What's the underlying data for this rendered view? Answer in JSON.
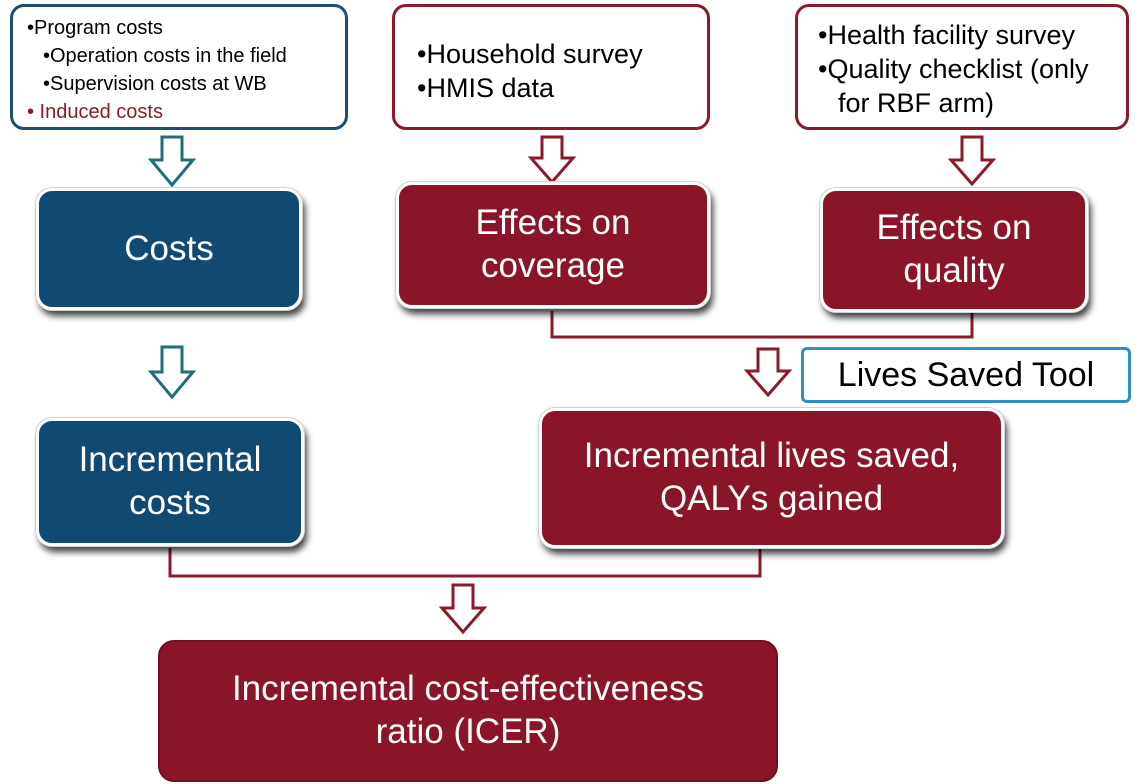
{
  "sources": {
    "costs": {
      "items": [
        "•Program costs",
        "•Operation costs in the field",
        "•Supervision costs at WB",
        "• Induced costs"
      ]
    },
    "coverage": {
      "items": [
        "•Household survey",
        "•HMIS data"
      ]
    },
    "quality": {
      "items": [
        "•Health facility survey",
        "•Quality checklist (only",
        "for RBF arm)"
      ]
    }
  },
  "boxes": {
    "costs": [
      "Costs"
    ],
    "coverage": [
      "Effects on",
      "coverage"
    ],
    "quality": [
      "Effects on",
      "quality"
    ],
    "incremental_costs": [
      "Incremental",
      "costs"
    ],
    "lives": [
      "Incremental lives saved,",
      "QALYs gained"
    ],
    "icer": [
      "Incremental cost-effectiveness",
      "ratio (ICER)"
    ]
  },
  "tool_label": "Lives Saved Tool",
  "colors": {
    "blue_box": "#104a72",
    "red_box": "#8b1528",
    "blue_arrow": "#1e6f7a",
    "red_arrow": "#8b1a2b",
    "tool_border": "#2e8fc7",
    "induced_text": "#8b1a2b"
  }
}
